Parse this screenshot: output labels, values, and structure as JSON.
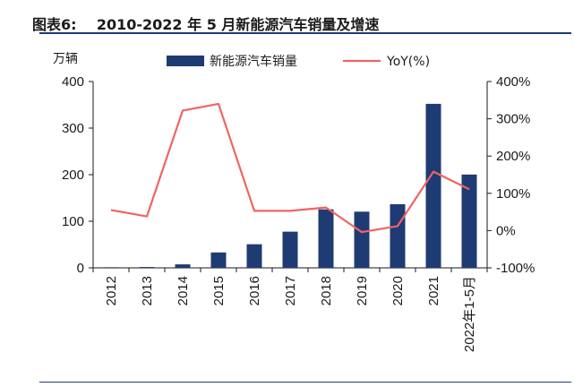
{
  "header": {
    "label": "图表6:",
    "title": "2010-2022 年 5 月新能源汽车销量及增速"
  },
  "chart_data": {
    "type": "bar",
    "title": "2010-2022 年 5 月新能源汽车销量及增速",
    "categories": [
      "2012",
      "2013",
      "2014",
      "2015",
      "2016",
      "2017",
      "2018",
      "2019",
      "2020",
      "2021",
      "2022年1-5月"
    ],
    "y_left_unit": "万辆",
    "y_left_lim": [
      0,
      400
    ],
    "y_left_ticks": [
      "0",
      "100",
      "200",
      "300",
      "400"
    ],
    "y_right_lim": [
      -100,
      400
    ],
    "y_right_ticks": [
      "-100%",
      "0%",
      "100%",
      "200%",
      "300%",
      "400%"
    ],
    "series": [
      {
        "name": "新能源汽车销量",
        "type": "bar",
        "axis": "left",
        "color": "#1f3b73",
        "values": [
          1.3,
          1.8,
          7.5,
          33.1,
          50.7,
          77.7,
          125.6,
          120.6,
          136.7,
          352.1,
          200.3
        ]
      },
      {
        "name": "YoY(%)",
        "type": "line",
        "axis": "right",
        "color": "#f06464",
        "values": [
          55,
          38,
          322,
          340,
          53,
          53,
          62,
          -4,
          12,
          158,
          111
        ]
      }
    ]
  }
}
